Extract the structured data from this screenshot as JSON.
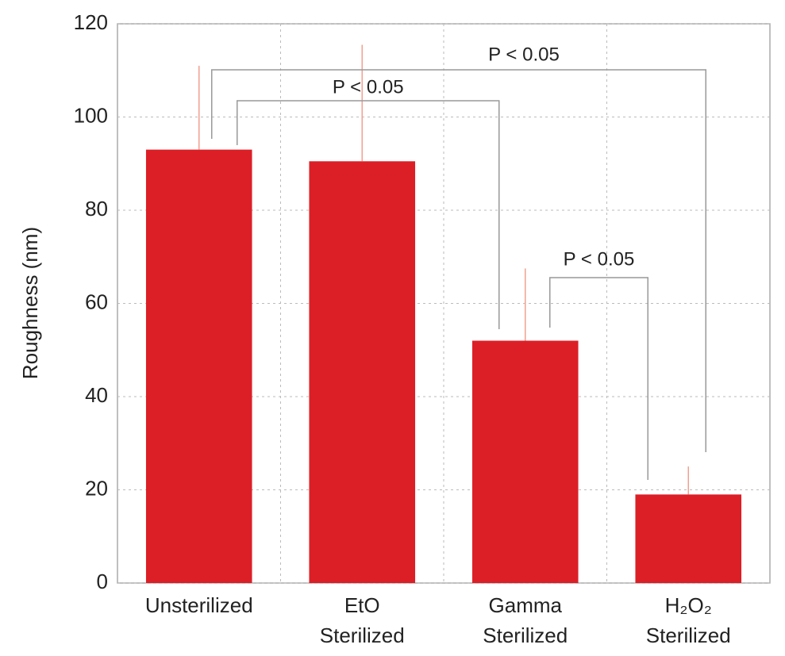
{
  "chart_data": {
    "type": "bar",
    "y_label": "Roughness (nm)",
    "categories": [
      "Unsterilized",
      "EtO Sterilized",
      "Gamma Sterilized",
      "H₂O₂ Sterilized"
    ],
    "values": [
      93,
      90.5,
      52,
      19
    ],
    "errors": [
      18,
      25,
      15.5,
      6
    ],
    "color": "#dc1f26",
    "error_color": "#f0a090",
    "ylim": [
      0,
      120
    ],
    "yticks": [
      0,
      20,
      40,
      60,
      80,
      100,
      120
    ],
    "grid": true,
    "annotations": [
      {
        "text": "P < 0.05",
        "from": 0,
        "to": 3
      },
      {
        "text": "P < 0.05",
        "from": 0,
        "to": 2
      },
      {
        "text": "P < 0.05",
        "from": 2,
        "to": 3
      }
    ]
  }
}
